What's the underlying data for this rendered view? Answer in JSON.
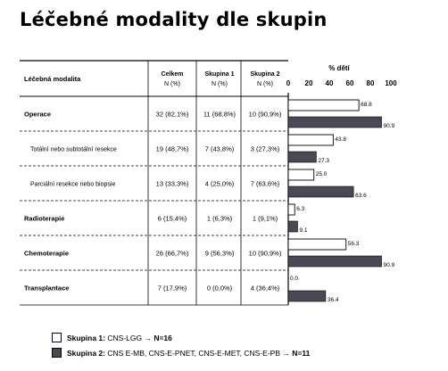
{
  "chart_data": {
    "type": "bar",
    "title": "Léčebné modality dle skupin",
    "table_headers": {
      "modality": "Léčebná modalita",
      "total": [
        "Celkem",
        "N (%)"
      ],
      "group1": [
        "Skupina 1",
        "N (%)"
      ],
      "group2": [
        "Skupina 2",
        "N (%)"
      ]
    },
    "axis_title": "% dětí",
    "xlim": [
      0,
      100
    ],
    "ticks": [
      "0",
      "20",
      "40",
      "60",
      "80",
      "100"
    ],
    "rows": [
      {
        "label": "Operace",
        "bold": true,
        "total": "32 (82,1%)",
        "g1": "11 (68,8%)",
        "g2": "10 (90,9%)"
      },
      {
        "label": "Totální nebo subtotální resekce",
        "bold": false,
        "total": "19 (48,7%)",
        "g1": "7 (43,8%)",
        "g2": "3 (27,3%)"
      },
      {
        "label": "Parciální resekce nebo biopsie",
        "bold": false,
        "total": "13 (33,3%)",
        "g1": "4 (25,0%)",
        "g2": "7 (63,6%)"
      },
      {
        "label": "Radioterapie",
        "bold": true,
        "total": "6 (15,4%)",
        "g1": "1 (6,3%)",
        "g2": "1 (9,1%)"
      },
      {
        "label": "Chemoterapie",
        "bold": true,
        "total": "26 (66,7%)",
        "g1": "9 (56,3%)",
        "g2": "10 (90,9%)"
      },
      {
        "label": "Transplantace",
        "bold": true,
        "total": "7 (17,9%)",
        "g1": "0 (0,0%)",
        "g2": "4 (36,4%)"
      }
    ],
    "series": [
      {
        "name": "Skupina 1",
        "values": [
          68.8,
          43.8,
          25.0,
          6.3,
          56.3,
          0.0
        ],
        "labels": [
          "68.8",
          "43.8",
          "25.0",
          "6.3",
          "56.3",
          "0.0"
        ],
        "color": "#ffffff"
      },
      {
        "name": "Skupina 2",
        "values": [
          90.9,
          27.3,
          63.6,
          9.1,
          90.9,
          36.4
        ],
        "labels": [
          "90.9",
          "27.3",
          "63.6",
          "9.1",
          "90.9",
          "36.4"
        ],
        "color": "#4a4a56"
      }
    ],
    "legend": [
      {
        "key": "Skupina 1:",
        "desc": "CNS-LGG →",
        "n": "N=16"
      },
      {
        "key": "Skupina 2:",
        "desc": "CNS E-MB, CNS-E-PNET, CNS-E-MET, CNS-E-PB →",
        "n": "N=11"
      }
    ]
  }
}
